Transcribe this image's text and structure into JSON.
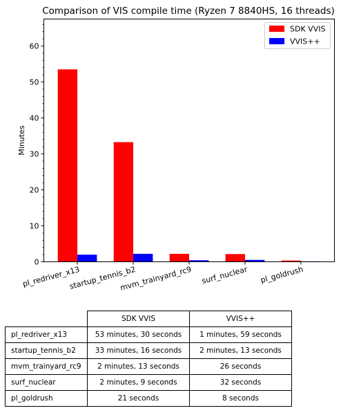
{
  "chart_data": {
    "type": "bar",
    "title": "Comparison of VIS compile time (Ryzen 7 8840HS, 16 threads)",
    "ylabel": "Minutes",
    "xlabel": "",
    "categories": [
      "pl_redriver_x13",
      "startup_tennis_b2",
      "mvm_trainyard_rc9",
      "surf_nuclear",
      "pl_goldrush"
    ],
    "series": [
      {
        "name": "SDK VVIS",
        "color": "#ff0000",
        "values": [
          53.5,
          33.27,
          2.22,
          2.15,
          0.35
        ]
      },
      {
        "name": "VVIS++",
        "color": "#0000ff",
        "values": [
          1.98,
          2.22,
          0.43,
          0.53,
          0.13
        ]
      }
    ],
    "ylim": [
      0,
      67.5
    ],
    "yticks": [
      0,
      10,
      20,
      30,
      40,
      50,
      60
    ],
    "legend": "top-right",
    "grid": false
  },
  "table": {
    "columns": [
      "SDK VVIS",
      "VVIS++"
    ],
    "rows": [
      {
        "label": "pl_redriver_x13",
        "sdk": "53 minutes, 30 seconds",
        "pp": "1 minutes, 59 seconds"
      },
      {
        "label": "startup_tennis_b2",
        "sdk": "33 minutes, 16 seconds",
        "pp": "2 minutes, 13 seconds"
      },
      {
        "label": "mvm_trainyard_rc9",
        "sdk": "2 minutes, 13 seconds",
        "pp": "26 seconds"
      },
      {
        "label": "surf_nuclear",
        "sdk": "2 minutes, 9 seconds",
        "pp": "32 seconds"
      },
      {
        "label": "pl_goldrush",
        "sdk": "21 seconds",
        "pp": "8 seconds"
      }
    ]
  }
}
